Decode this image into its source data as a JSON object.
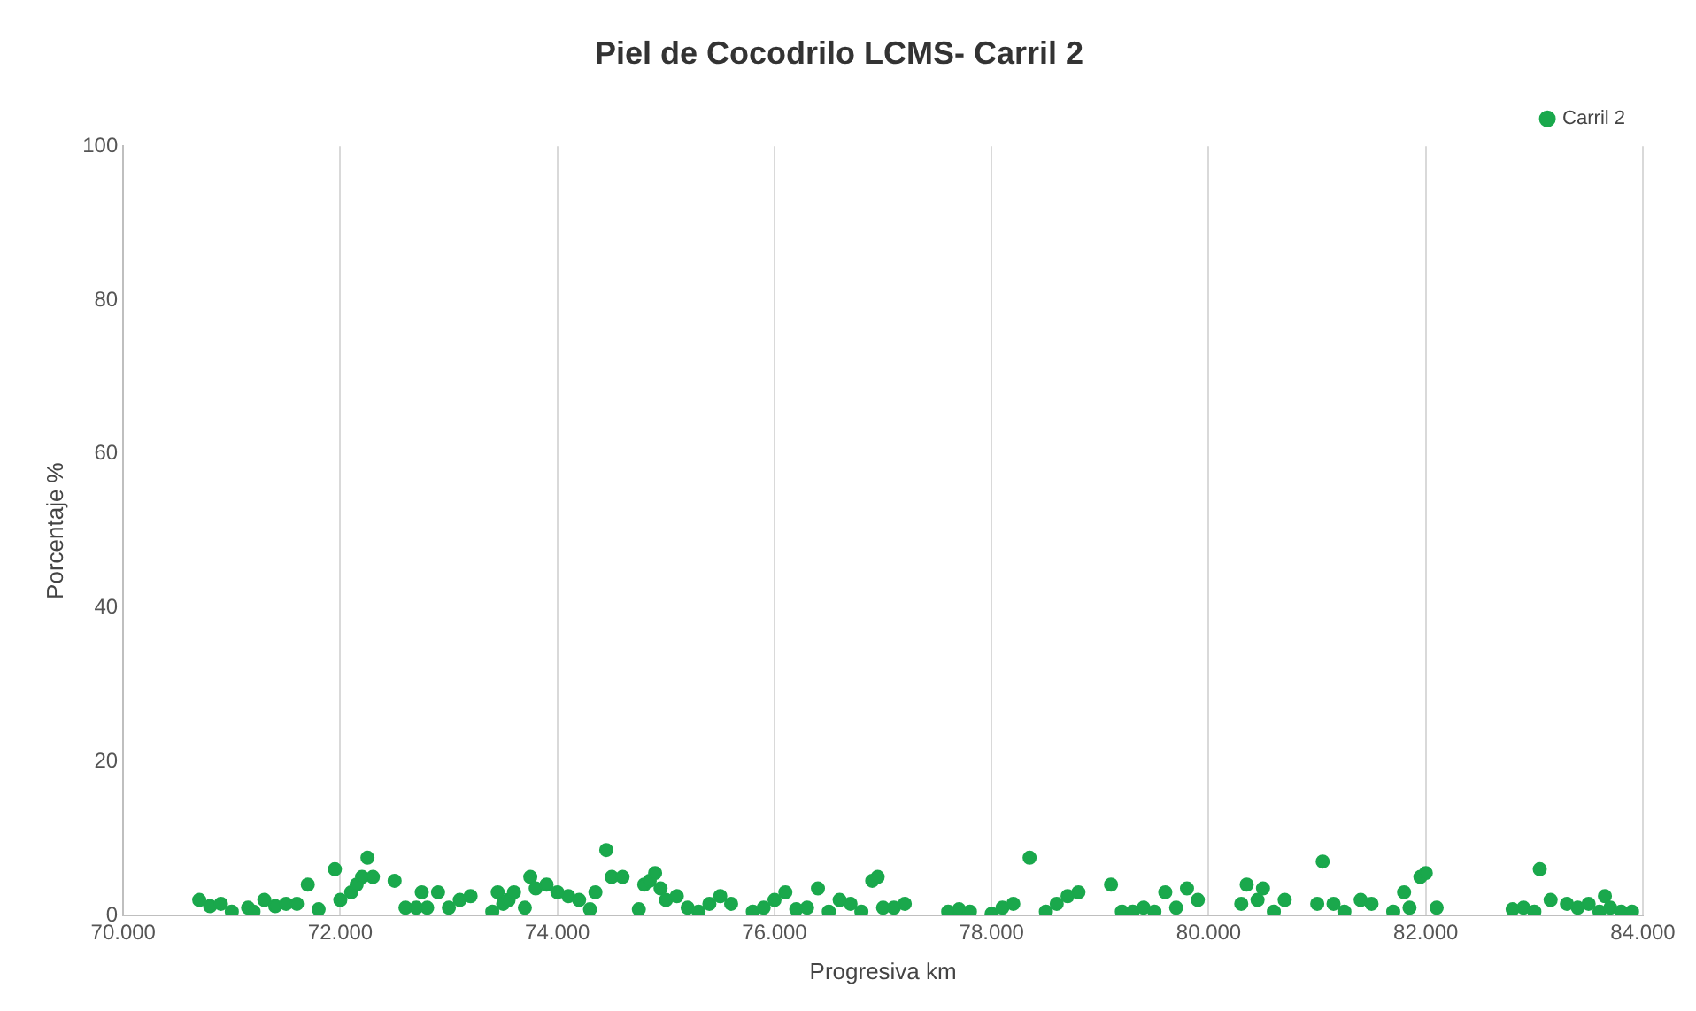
{
  "chart_data": {
    "type": "scatter",
    "title": "Piel de Cocodrilo LCMS- Carril 2",
    "xlabel": "Progresiva km",
    "ylabel": "Porcentaje %",
    "xlim": [
      70000,
      84000
    ],
    "xticks": [
      {
        "value": 70000,
        "label": "70.000"
      },
      {
        "value": 72000,
        "label": "72.000"
      },
      {
        "value": 74000,
        "label": "74.000"
      },
      {
        "value": 76000,
        "label": "76.000"
      },
      {
        "value": 78000,
        "label": "78.000"
      },
      {
        "value": 80000,
        "label": "80.000"
      },
      {
        "value": 82000,
        "label": "82.000"
      },
      {
        "value": 84000,
        "label": "84.000"
      }
    ],
    "ylim": [
      0,
      100
    ],
    "yticks": [
      0,
      20,
      40,
      60,
      80,
      100
    ],
    "grid": "x",
    "legend": "top right",
    "marker": "circle",
    "series": [
      {
        "name": "Carril 2",
        "color": "#1aa84c",
        "x": [
          70700,
          70800,
          70900,
          71000,
          71150,
          71200,
          71300,
          71400,
          71500,
          71600,
          71700,
          71800,
          71950,
          72000,
          72100,
          72150,
          72200,
          72250,
          72300,
          72500,
          72600,
          72700,
          72750,
          72800,
          72900,
          73000,
          73100,
          73200,
          73400,
          73450,
          73500,
          73550,
          73600,
          73700,
          73750,
          73800,
          73900,
          74000,
          74100,
          74200,
          74300,
          74350,
          74450,
          74500,
          74600,
          74750,
          74800,
          74850,
          74900,
          74950,
          75000,
          75100,
          75200,
          75300,
          75400,
          75500,
          75600,
          75800,
          75900,
          76000,
          76100,
          76200,
          76300,
          76400,
          76500,
          76600,
          76700,
          76800,
          76900,
          76950,
          77000,
          77100,
          77200,
          77600,
          77700,
          77800,
          78000,
          78100,
          78200,
          78350,
          78500,
          78600,
          78700,
          78800,
          79100,
          79200,
          79300,
          79400,
          79500,
          79600,
          79700,
          79800,
          79900,
          80300,
          80350,
          80450,
          80500,
          80600,
          80700,
          81000,
          81050,
          81150,
          81250,
          81400,
          81500,
          81700,
          81800,
          81850,
          81950,
          82000,
          82100,
          82800,
          82900,
          83000,
          83050,
          83150,
          83300,
          83400,
          83500,
          83600,
          83650,
          83700,
          83800,
          83900
        ],
        "values": [
          2,
          1.2,
          1.5,
          0.5,
          1,
          0.5,
          2,
          1.2,
          1.5,
          1.5,
          4,
          0.8,
          6,
          2,
          3,
          4,
          5,
          7.5,
          5,
          4.5,
          1,
          1,
          3,
          1,
          3,
          1,
          2,
          2.5,
          0.5,
          3,
          1.5,
          2,
          3,
          1,
          5,
          3.5,
          4,
          3,
          2.5,
          2,
          0.8,
          3,
          8.5,
          5,
          5,
          0.8,
          4,
          4.5,
          5.5,
          3.5,
          2,
          2.5,
          1,
          0.5,
          1.5,
          2.5,
          1.5,
          0.5,
          1,
          2,
          3,
          0.8,
          1,
          3.5,
          0.5,
          2,
          1.5,
          0.5,
          4.5,
          5,
          1,
          1,
          1.5,
          0.5,
          0.8,
          0.5,
          0.2,
          1,
          1.5,
          7.5,
          0.5,
          1.5,
          2.5,
          3,
          4,
          0.5,
          0.5,
          1,
          0.5,
          3,
          1,
          3.5,
          2,
          1.5,
          4,
          2,
          3.5,
          0.5,
          2,
          1.5,
          7,
          1.5,
          0.5,
          2,
          1.5,
          0.5,
          3,
          1,
          5,
          5.5,
          1,
          0.8,
          1,
          0.5,
          6,
          2,
          1.5,
          1,
          1.5,
          0.5,
          2.5,
          1,
          0.5,
          0.5
        ]
      }
    ]
  }
}
